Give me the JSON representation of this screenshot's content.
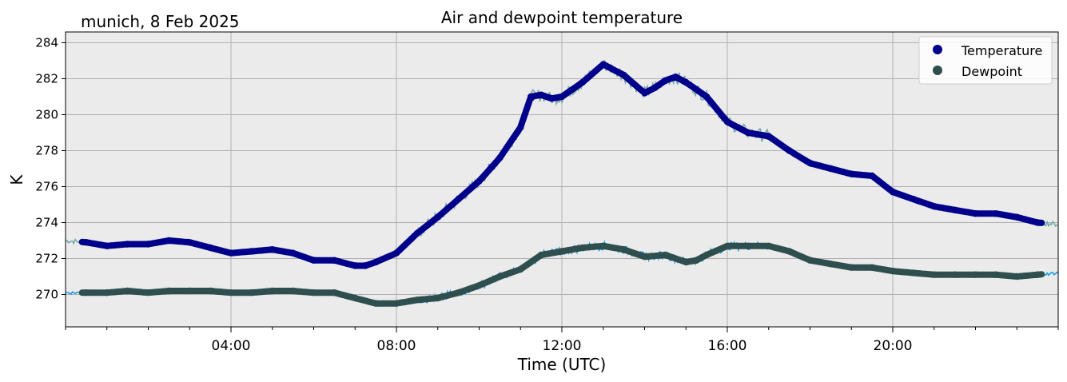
{
  "header": {
    "location_date": "munich, 8 Feb 2025"
  },
  "chart_data": {
    "type": "line",
    "title": "Air and dewpoint temperature",
    "xlabel": "Time (UTC)",
    "ylabel": "K",
    "xlim_hours": [
      0,
      24
    ],
    "ylim": [
      268.2,
      284.6
    ],
    "x_ticks": [
      {
        "hour": 4,
        "label": "04:00"
      },
      {
        "hour": 8,
        "label": "08:00"
      },
      {
        "hour": 12,
        "label": "12:00"
      },
      {
        "hour": 16,
        "label": "16:00"
      },
      {
        "hour": 20,
        "label": "20:00"
      }
    ],
    "y_ticks": [
      270,
      272,
      274,
      276,
      278,
      280,
      282,
      284
    ],
    "grid": true,
    "legend_position": "top-right",
    "colors": {
      "plot_background": "#ebebeb",
      "grid": "#b0b0b0",
      "temperature_smooth": "#00008b",
      "temperature_raw": "#7aa8a8",
      "dewpoint_smooth": "#2f4f4f",
      "dewpoint_raw": "#1e9bea"
    },
    "series": [
      {
        "name": "Temperature",
        "raw_name": "",
        "x_hours": [
          0.0,
          0.5,
          1.0,
          1.5,
          2.0,
          2.5,
          3.0,
          3.5,
          4.0,
          4.5,
          5.0,
          5.5,
          6.0,
          6.5,
          7.0,
          7.25,
          7.5,
          8.0,
          8.5,
          9.0,
          9.5,
          10.0,
          10.5,
          11.0,
          11.25,
          11.5,
          11.75,
          12.0,
          12.5,
          13.0,
          13.5,
          14.0,
          14.25,
          14.5,
          14.75,
          15.0,
          15.5,
          16.0,
          16.5,
          17.0,
          17.5,
          18.0,
          18.5,
          19.0,
          19.5,
          20.0,
          20.5,
          21.0,
          21.5,
          22.0,
          22.5,
          23.0,
          23.5,
          24.0
        ],
        "values": [
          273.0,
          272.9,
          272.7,
          272.8,
          272.8,
          273.0,
          272.9,
          272.6,
          272.3,
          272.4,
          272.5,
          272.3,
          271.9,
          271.9,
          271.6,
          271.6,
          271.8,
          272.3,
          273.4,
          274.3,
          275.3,
          276.3,
          277.6,
          279.3,
          281.0,
          281.1,
          280.9,
          281.0,
          281.8,
          282.8,
          282.2,
          281.2,
          281.5,
          281.9,
          282.1,
          281.8,
          281.0,
          279.6,
          279.0,
          278.8,
          278.0,
          277.3,
          277.0,
          276.7,
          276.6,
          275.7,
          275.3,
          274.9,
          274.7,
          274.5,
          274.5,
          274.3,
          274.0,
          273.9
        ]
      },
      {
        "name": "Dewpoint",
        "raw_name": "",
        "x_hours": [
          0.0,
          0.5,
          1.0,
          1.5,
          2.0,
          2.5,
          3.0,
          3.5,
          4.0,
          4.5,
          5.0,
          5.5,
          6.0,
          6.5,
          7.0,
          7.5,
          8.0,
          8.5,
          9.0,
          9.5,
          10.0,
          10.5,
          11.0,
          11.5,
          12.0,
          12.5,
          13.0,
          13.5,
          14.0,
          14.5,
          15.0,
          15.25,
          15.5,
          16.0,
          16.5,
          17.0,
          17.5,
          18.0,
          18.5,
          19.0,
          19.5,
          20.0,
          20.5,
          21.0,
          21.5,
          22.0,
          22.5,
          23.0,
          23.5,
          24.0
        ],
        "values": [
          270.1,
          270.1,
          270.1,
          270.2,
          270.1,
          270.2,
          270.2,
          270.2,
          270.1,
          270.1,
          270.2,
          270.2,
          270.1,
          270.1,
          269.8,
          269.5,
          269.5,
          269.7,
          269.8,
          270.1,
          270.5,
          271.0,
          271.4,
          272.2,
          272.4,
          272.6,
          272.7,
          272.5,
          272.1,
          272.2,
          271.8,
          271.9,
          272.2,
          272.7,
          272.7,
          272.7,
          272.4,
          271.9,
          271.7,
          271.5,
          271.5,
          271.3,
          271.2,
          271.1,
          271.1,
          271.1,
          271.1,
          271.0,
          271.1,
          271.2
        ]
      }
    ]
  }
}
